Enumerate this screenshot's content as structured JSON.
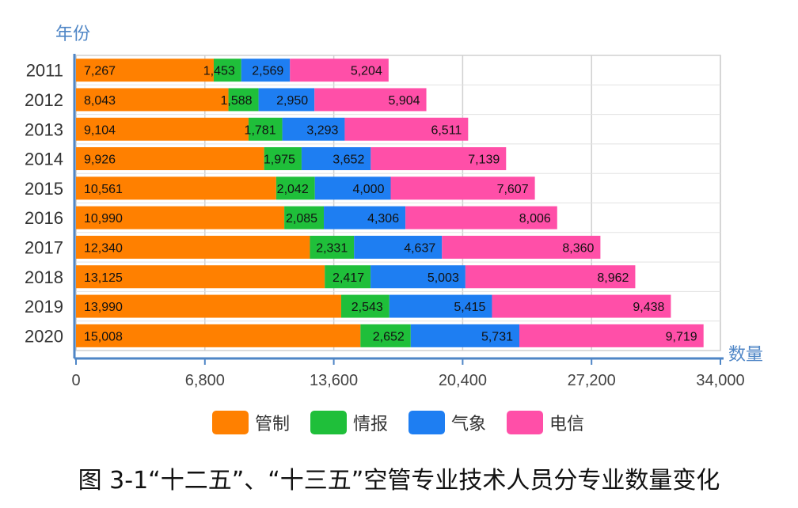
{
  "chart_data": {
    "type": "bar",
    "orientation": "horizontal",
    "stacked": true,
    "title": "图 3-1“十二五”、“十三五”空管专业技术人员分专业数量变化",
    "ylabel": "年份",
    "xlabel": "数量",
    "categories": [
      "2011",
      "2012",
      "2013",
      "2014",
      "2015",
      "2016",
      "2017",
      "2018",
      "2019",
      "2020"
    ],
    "xlim": [
      0,
      34000
    ],
    "xticks": [
      "0",
      "6,800",
      "13,600",
      "20,400",
      "27,200",
      "34,000"
    ],
    "xtick_values": [
      0,
      6800,
      13600,
      20400,
      27200,
      34000
    ],
    "grid": true,
    "legend_position": "bottom",
    "series": [
      {
        "name": "管制",
        "color": "#ff8000",
        "values": [
          7267,
          8043,
          9104,
          9926,
          10561,
          10990,
          12340,
          13125,
          13990,
          15008
        ],
        "labels": [
          "7,267",
          "8,043",
          "9,104",
          "9,926",
          "10,561",
          "10,990",
          "12,340",
          "13,125",
          "13,990",
          "15,008"
        ]
      },
      {
        "name": "情报",
        "color": "#1fbf3a",
        "values": [
          1453,
          1588,
          1781,
          1975,
          2042,
          2085,
          2331,
          2417,
          2543,
          2652
        ],
        "labels": [
          "1,453",
          "1,588",
          "1,781",
          "1,975",
          "2,042",
          "2,085",
          "2,331",
          "2,417",
          "2,543",
          "2,652"
        ]
      },
      {
        "name": "气象",
        "color": "#1e7ef2",
        "values": [
          2569,
          2950,
          3293,
          3652,
          4000,
          4306,
          4637,
          5003,
          5415,
          5731
        ],
        "labels": [
          "2,569",
          "2,950",
          "3,293",
          "3,652",
          "4,000",
          "4,306",
          "4,637",
          "5,003",
          "5,415",
          "5,731"
        ]
      },
      {
        "name": "电信",
        "color": "#ff4fa8",
        "values": [
          5204,
          5904,
          6511,
          7139,
          7607,
          8006,
          8360,
          8962,
          9438,
          9719
        ],
        "labels": [
          "5,204",
          "5,904",
          "6,511",
          "7,139",
          "7,607",
          "8,006",
          "8,360",
          "8,962",
          "9,438",
          "9,719"
        ]
      }
    ]
  }
}
